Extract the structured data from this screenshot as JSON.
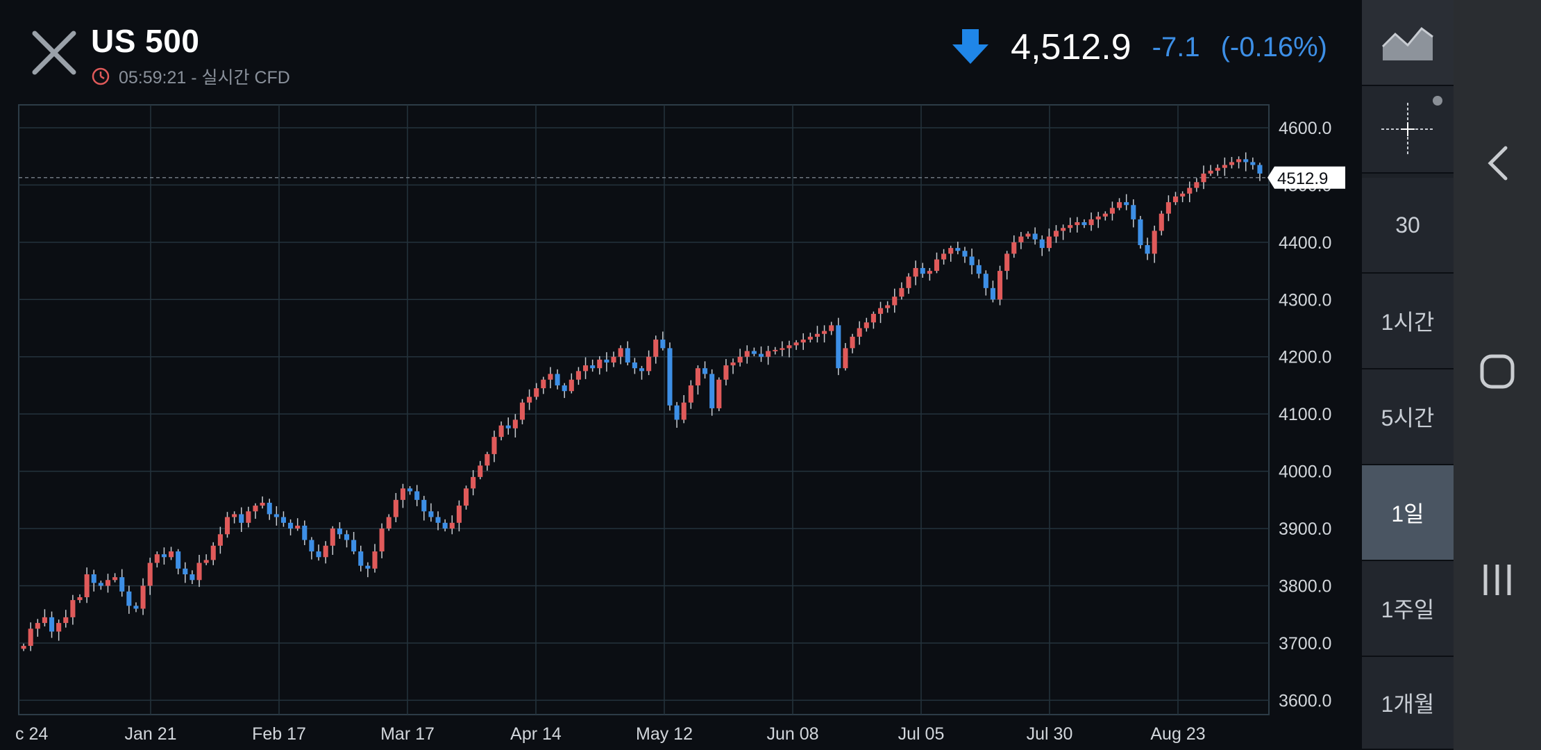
{
  "header": {
    "symbol": "US 500",
    "subtitle": "05:59:21 - 실시간 CFD",
    "price": "4,512.9",
    "change": "-7.1",
    "change_pct": "(-0.16%)",
    "direction_icon": "arrow-down-icon",
    "change_color": "#3d8fe6"
  },
  "current_price_label": "4512.9",
  "toolbar": {
    "chart_type_icon": "area-chart-icon",
    "crosshair_icon": "crosshair-icon",
    "intervals": [
      "30",
      "1시간",
      "5시간",
      "1일",
      "1주일",
      "1개월"
    ],
    "selected_interval": "1일"
  },
  "navbar": {
    "back_icon": "back-chevron-icon",
    "home_icon": "home-icon",
    "recents_icon": "recents-icon"
  },
  "colors": {
    "up": "#e05a5a",
    "down": "#3d8fe6",
    "grid": "#24333d",
    "background": "#0b0e13"
  },
  "chart_data": {
    "type": "candlestick",
    "y_ticks": [
      "3600.0",
      "3700.0",
      "3800.0",
      "3900.0",
      "4000.0",
      "4100.0",
      "4200.0",
      "4300.0",
      "4400.0",
      "4500.0",
      "4600.0"
    ],
    "ylim": [
      3575,
      4640
    ],
    "x_ticks": [
      "c 24",
      "Jan 21",
      "Feb 17",
      "Mar 17",
      "Apr 14",
      "May 12",
      "Jun 08",
      "Jul 05",
      "Jul 30",
      "Aug 23"
    ],
    "current_price": 4512.9,
    "close_series": [
      3695,
      3725,
      3735,
      3745,
      3720,
      3735,
      3745,
      3775,
      3780,
      3820,
      3805,
      3800,
      3810,
      3815,
      3790,
      3765,
      3760,
      3800,
      3840,
      3855,
      3850,
      3860,
      3830,
      3820,
      3810,
      3840,
      3845,
      3870,
      3890,
      3920,
      3925,
      3910,
      3930,
      3940,
      3945,
      3925,
      3920,
      3910,
      3900,
      3905,
      3880,
      3860,
      3850,
      3870,
      3900,
      3890,
      3880,
      3860,
      3835,
      3830,
      3860,
      3900,
      3920,
      3950,
      3970,
      3965,
      3950,
      3930,
      3920,
      3910,
      3900,
      3910,
      3940,
      3970,
      3990,
      4010,
      4030,
      4060,
      4080,
      4075,
      4090,
      4120,
      4130,
      4145,
      4160,
      4170,
      4150,
      4140,
      4160,
      4175,
      4185,
      4180,
      4195,
      4190,
      4200,
      4215,
      4190,
      4180,
      4175,
      4200,
      4230,
      4215,
      4115,
      4090,
      4120,
      4150,
      4180,
      4170,
      4110,
      4160,
      4185,
      4190,
      4200,
      4210,
      4205,
      4200,
      4210,
      4212,
      4215,
      4220,
      4225,
      4230,
      4235,
      4240,
      4245,
      4255,
      4180,
      4215,
      4235,
      4250,
      4260,
      4275,
      4285,
      4290,
      4305,
      4320,
      4340,
      4355,
      4345,
      4350,
      4370,
      4380,
      4390,
      4385,
      4375,
      4360,
      4345,
      4320,
      4300,
      4350,
      4380,
      4400,
      4410,
      4415,
      4405,
      4390,
      4410,
      4420,
      4425,
      4430,
      4435,
      4430,
      4440,
      4445,
      4450,
      4460,
      4470,
      4465,
      4440,
      4395,
      4380,
      4420,
      4450,
      4470,
      4480,
      4485,
      4495,
      4505,
      4520,
      4525,
      4530,
      4535,
      4540,
      4545,
      4540,
      4535,
      4520
    ],
    "grid": true,
    "legend": "none"
  }
}
